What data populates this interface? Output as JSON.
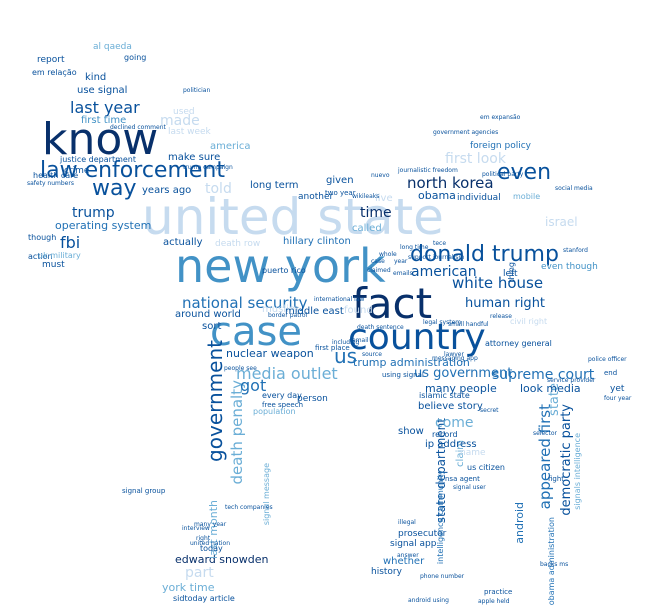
{
  "palette": {
    "darkest": "#08306b",
    "dark": "#08519c",
    "mid": "#2171b5",
    "medium": "#4292c6",
    "light": "#6baed6",
    "lighter": "#9ecae1",
    "palest": "#c6dbef"
  },
  "words": [
    {
      "text": "united state",
      "color": "#c6dbef"
    },
    {
      "text": "new york",
      "color": "#4292c6"
    },
    {
      "text": "fact",
      "color": "#08306b"
    },
    {
      "text": "case",
      "color": "#4292c6"
    },
    {
      "text": "country",
      "color": "#08519c"
    },
    {
      "text": "know",
      "color": "#08306b"
    },
    {
      "text": "law enforcement",
      "color": "#08519c"
    },
    {
      "text": "donald trump",
      "color": "#08519c"
    },
    {
      "text": "even",
      "color": "#08519c"
    },
    {
      "text": "way",
      "color": "#08519c"
    },
    {
      "text": "government",
      "color": "#08519c"
    },
    {
      "text": "national security",
      "color": "#2171b5"
    },
    {
      "text": "white house",
      "color": "#08519c"
    },
    {
      "text": "human right",
      "color": "#08519c"
    },
    {
      "text": "north korea",
      "color": "#08306b"
    },
    {
      "text": "american",
      "color": "#08519c"
    },
    {
      "text": "us",
      "color": "#2171b5"
    },
    {
      "text": "us government",
      "color": "#2171b5"
    },
    {
      "text": "supreme court",
      "color": "#2171b5"
    },
    {
      "text": "last year",
      "color": "#08519c"
    },
    {
      "text": "media outlet",
      "color": "#6baed6"
    },
    {
      "text": "death penalty",
      "color": "#6baed6"
    },
    {
      "text": "appeared first",
      "color": "#2171b5"
    },
    {
      "text": "democratic party",
      "color": "#08519c"
    },
    {
      "text": "state",
      "color": "#6baed6"
    },
    {
      "text": "state department",
      "color": "#08519c"
    },
    {
      "text": "first look",
      "color": "#c6dbef"
    },
    {
      "text": "trump",
      "color": "#08519c"
    },
    {
      "text": "fbi",
      "color": "#08519c"
    },
    {
      "text": "operating system",
      "color": "#2171b5"
    },
    {
      "text": "time",
      "color": "#08306b"
    },
    {
      "text": "told",
      "color": "#c6dbef"
    },
    {
      "text": "made",
      "color": "#c6dbef"
    },
    {
      "text": "come",
      "color": "#6baed6"
    },
    {
      "text": "got",
      "color": "#2171b5"
    },
    {
      "text": "part",
      "color": "#c6dbef"
    },
    {
      "text": "many people",
      "color": "#08519c"
    },
    {
      "text": "look media",
      "color": "#08519c"
    },
    {
      "text": "nuclear weapon",
      "color": "#08519c"
    },
    {
      "text": "trump administration",
      "color": "#2171b5"
    },
    {
      "text": "edward snowden",
      "color": "#08306b"
    },
    {
      "text": "android",
      "color": "#2171b5"
    },
    {
      "text": "first time",
      "color": "#4292c6"
    },
    {
      "text": "use signal",
      "color": "#08519c"
    },
    {
      "text": "make sure",
      "color": "#08519c"
    },
    {
      "text": "long term",
      "color": "#08519c"
    },
    {
      "text": "hillary clinton",
      "color": "#2171b5"
    },
    {
      "text": "around world",
      "color": "#08519c"
    },
    {
      "text": "sort",
      "color": "#08519c"
    },
    {
      "text": "believe story",
      "color": "#08519c"
    },
    {
      "text": "muslim",
      "color": "#c6dbef"
    },
    {
      "text": "israel",
      "color": "#c6dbef"
    },
    {
      "text": "obama",
      "color": "#08519c"
    },
    {
      "text": "individual",
      "color": "#08519c"
    },
    {
      "text": "left",
      "color": "#08519c"
    },
    {
      "text": "even though",
      "color": "#4292c6"
    },
    {
      "text": "foreign policy",
      "color": "#2171b5"
    },
    {
      "text": "america",
      "color": "#6baed6"
    },
    {
      "text": "justice department",
      "color": "#08519c"
    },
    {
      "text": "crime",
      "color": "#08519c"
    },
    {
      "text": "report",
      "color": "#08519c"
    },
    {
      "text": "al qaeda",
      "color": "#6baed6"
    },
    {
      "text": "kind",
      "color": "#08519c"
    },
    {
      "text": "em relação",
      "color": "#08519c"
    },
    {
      "text": "years ago",
      "color": "#08519c"
    },
    {
      "text": "given",
      "color": "#08519c"
    },
    {
      "text": "another",
      "color": "#08519c"
    },
    {
      "text": "called",
      "color": "#6baed6"
    },
    {
      "text": "actually",
      "color": "#08519c"
    },
    {
      "text": "death row",
      "color": "#c6dbef"
    },
    {
      "text": "whether",
      "color": "#2171b5"
    },
    {
      "text": "prosecutor",
      "color": "#08519c"
    },
    {
      "text": "signal app",
      "color": "#08519c"
    },
    {
      "text": "history",
      "color": "#08519c"
    },
    {
      "text": "york time",
      "color": "#6baed6"
    },
    {
      "text": "last month",
      "color": "#6baed6"
    },
    {
      "text": "claim",
      "color": "#6baed6"
    },
    {
      "text": "ip address",
      "color": "#08519c"
    },
    {
      "text": "show",
      "color": "#08519c"
    },
    {
      "text": "middle east",
      "color": "#08519c"
    },
    {
      "text": "found",
      "color": "#c6dbef"
    },
    {
      "text": "live",
      "color": "#c6dbef"
    },
    {
      "text": "used",
      "color": "#c6dbef"
    },
    {
      "text": "last week",
      "color": "#c6dbef"
    },
    {
      "text": "going",
      "color": "#08519c"
    },
    {
      "text": "yet",
      "color": "#08519c"
    },
    {
      "text": "must",
      "color": "#08519c"
    },
    {
      "text": "though",
      "color": "#08519c"
    },
    {
      "text": "action",
      "color": "#08519c"
    },
    {
      "text": "health care",
      "color": "#08519c"
    },
    {
      "text": "intelligence community",
      "color": "#2171b5"
    },
    {
      "text": "obama administration",
      "color": "#2171b5"
    },
    {
      "text": "signals intelligence",
      "color": "#6baed6"
    },
    {
      "text": "islamic state",
      "color": "#08519c"
    },
    {
      "text": "attorney general",
      "color": "#08519c"
    },
    {
      "text": "civil right",
      "color": "#c6dbef"
    },
    {
      "text": "person",
      "color": "#08519c"
    },
    {
      "text": "every day",
      "color": "#08519c"
    },
    {
      "text": "population",
      "color": "#6baed6"
    },
    {
      "text": "signal message",
      "color": "#6baed6"
    },
    {
      "text": "puerto rico",
      "color": "#08519c"
    },
    {
      "text": "free speech",
      "color": "#08519c"
    },
    {
      "text": "today",
      "color": "#08519c"
    },
    {
      "text": "sidtoday article",
      "color": "#08519c"
    },
    {
      "text": "signal group",
      "color": "#08519c"
    },
    {
      "text": "two year",
      "color": "#08519c"
    },
    {
      "text": "thing",
      "color": "#08519c"
    },
    {
      "text": "record",
      "color": "#08519c"
    },
    {
      "text": "name",
      "color": "#c6dbef"
    },
    {
      "text": "us citizen",
      "color": "#08519c"
    },
    {
      "text": "using signal",
      "color": "#08519c"
    },
    {
      "text": "first place",
      "color": "#08519c"
    },
    {
      "text": "death sentence",
      "color": "#08519c"
    },
    {
      "text": "international law",
      "color": "#08519c"
    },
    {
      "text": "journalistic freedom",
      "color": "#08519c"
    },
    {
      "text": "social media",
      "color": "#08519c"
    },
    {
      "text": "support journalism",
      "color": "#08519c"
    },
    {
      "text": "border patrol",
      "color": "#08519c"
    },
    {
      "text": "trump campaign",
      "color": "#08519c"
    },
    {
      "text": "declined comment",
      "color": "#08519c"
    },
    {
      "text": "safety numbers",
      "color": "#08519c"
    },
    {
      "text": "uk military",
      "color": "#6baed6"
    },
    {
      "text": "politician",
      "color": "#08519c"
    },
    {
      "text": "em expansão",
      "color": "#08519c"
    },
    {
      "text": "government agencies",
      "color": "#08519c"
    },
    {
      "text": "four year",
      "color": "#08519c"
    },
    {
      "text": "backs ms",
      "color": "#08519c"
    },
    {
      "text": "practice",
      "color": "#08519c"
    },
    {
      "text": "fight",
      "color": "#08519c"
    },
    {
      "text": "apple held",
      "color": "#08519c"
    },
    {
      "text": "including",
      "color": "#08519c"
    },
    {
      "text": "stanford",
      "color": "#08519c"
    },
    {
      "text": "messaging app",
      "color": "#08519c"
    },
    {
      "text": "secret",
      "color": "#08519c"
    },
    {
      "text": "end",
      "color": "#08519c"
    },
    {
      "text": "police officer",
      "color": "#08519c"
    },
    {
      "text": "service provider",
      "color": "#08519c"
    },
    {
      "text": "signal user",
      "color": "#08519c"
    },
    {
      "text": "phone number",
      "color": "#08519c"
    },
    {
      "text": "nsa agent",
      "color": "#08519c"
    },
    {
      "text": "interview",
      "color": "#08519c"
    },
    {
      "text": "right",
      "color": "#08519c"
    },
    {
      "text": "many year",
      "color": "#08519c"
    },
    {
      "text": "united nation",
      "color": "#08519c"
    },
    {
      "text": "tech companies",
      "color": "#08519c"
    },
    {
      "text": "small handful",
      "color": "#08519c"
    },
    {
      "text": "legal system",
      "color": "#08519c"
    },
    {
      "text": "email",
      "color": "#08519c"
    },
    {
      "text": "political party",
      "color": "#08519c"
    },
    {
      "text": "claimed",
      "color": "#08519c"
    },
    {
      "text": "long time",
      "color": "#08519c"
    },
    {
      "text": "people see",
      "color": "#08519c"
    },
    {
      "text": "mobile",
      "color": "#6baed6"
    },
    {
      "text": "source",
      "color": "#08519c"
    },
    {
      "text": "release",
      "color": "#08519c"
    },
    {
      "text": "year",
      "color": "#08519c"
    },
    {
      "text": "nuevo",
      "color": "#08519c"
    },
    {
      "text": "wikileaks",
      "color": "#08519c"
    },
    {
      "text": "whole",
      "color": "#08519c"
    },
    {
      "text": "case",
      "color": "#08519c"
    },
    {
      "text": "tece",
      "color": "#08519c"
    },
    {
      "text": "emails",
      "color": "#08519c"
    },
    {
      "text": "lawyer",
      "color": "#08519c"
    },
    {
      "text": "illegal",
      "color": "#08519c"
    },
    {
      "text": "answer",
      "color": "#08519c"
    },
    {
      "text": "android using",
      "color": "#08519c"
    },
    {
      "text": "selector",
      "color": "#08519c"
    }
  ]
}
